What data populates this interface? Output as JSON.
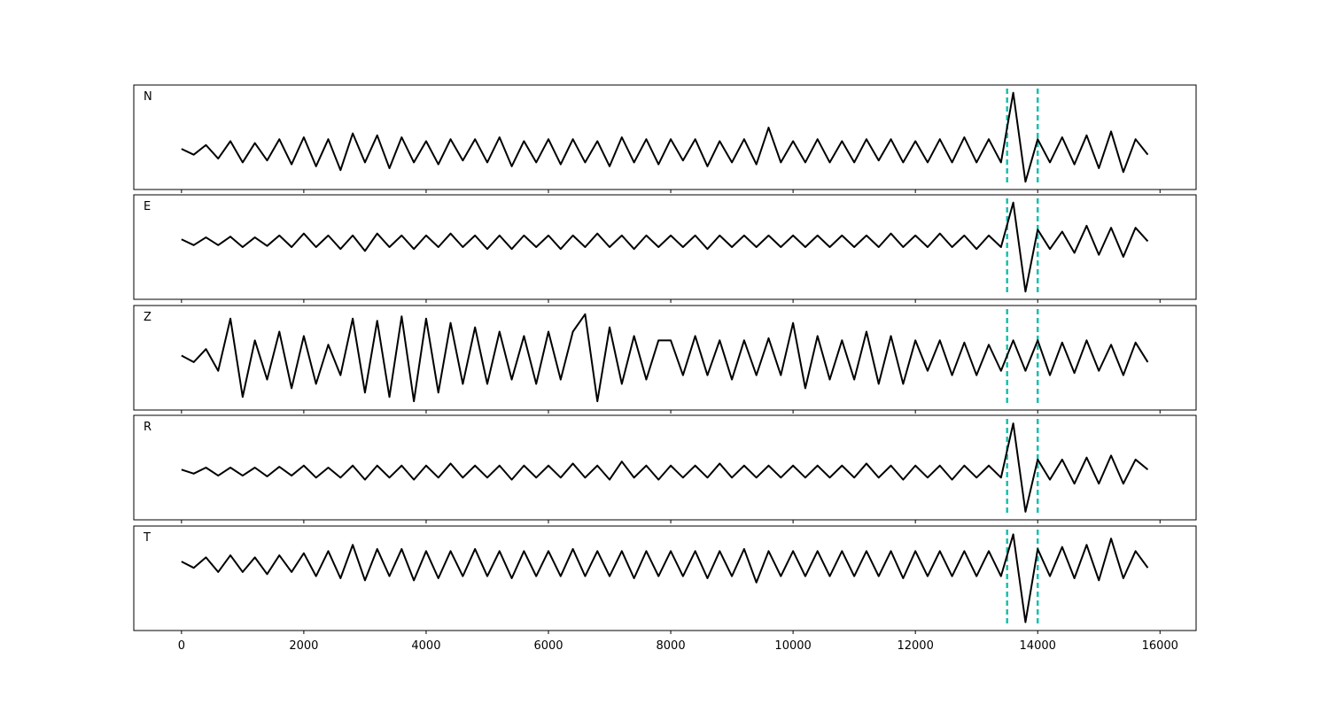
{
  "chart_data": {
    "type": "line",
    "x": [
      0,
      200,
      400,
      600,
      800,
      1000,
      1200,
      1400,
      1600,
      1800,
      2000,
      2200,
      2400,
      2600,
      2800,
      3000,
      3200,
      3400,
      3600,
      3800,
      4000,
      4200,
      4400,
      4600,
      4800,
      5000,
      5200,
      5400,
      5600,
      5800,
      6000,
      6200,
      6400,
      6600,
      6800,
      7000,
      7200,
      7400,
      7600,
      7800,
      8000,
      8200,
      8400,
      8600,
      8800,
      9000,
      9200,
      9400,
      9600,
      9800,
      10000,
      10200,
      10400,
      10600,
      10800,
      11000,
      11200,
      11400,
      11600,
      11800,
      12000,
      12200,
      12400,
      12600,
      12800,
      13000,
      13200,
      13400,
      13600,
      13800,
      14000,
      14200,
      14400,
      14600,
      14800,
      15000,
      15200,
      15400,
      15600,
      15800
    ],
    "xlim": [
      -780,
      16590
    ],
    "xticks": [
      0,
      2000,
      4000,
      6000,
      8000,
      10000,
      12000,
      14000,
      16000
    ],
    "vlines": [
      13500,
      14000
    ],
    "vline_color": "#17c0b0",
    "series": [
      {
        "name": "N",
        "color": "#000000",
        "ylim": [
          -1,
          1.7
        ],
        "values": [
          0.05,
          -0.1,
          0.15,
          -0.2,
          0.25,
          -0.3,
          0.2,
          -0.25,
          0.3,
          -0.35,
          0.35,
          -0.4,
          0.3,
          -0.5,
          0.45,
          -0.3,
          0.4,
          -0.45,
          0.35,
          -0.3,
          0.25,
          -0.35,
          0.3,
          -0.25,
          0.3,
          -0.3,
          0.35,
          -0.4,
          0.25,
          -0.3,
          0.3,
          -0.35,
          0.3,
          -0.3,
          0.25,
          -0.4,
          0.35,
          -0.3,
          0.3,
          -0.35,
          0.3,
          -0.25,
          0.3,
          -0.4,
          0.25,
          -0.3,
          0.3,
          -0.35,
          0.6,
          -0.3,
          0.25,
          -0.3,
          0.3,
          -0.3,
          0.25,
          -0.3,
          0.3,
          -0.25,
          0.3,
          -0.3,
          0.25,
          -0.3,
          0.3,
          -0.3,
          0.35,
          -0.3,
          0.3,
          -0.3,
          1.5,
          -0.8,
          0.3,
          -0.3,
          0.35,
          -0.35,
          0.4,
          -0.45,
          0.5,
          -0.55,
          0.3,
          -0.1
        ]
      },
      {
        "name": "E",
        "color": "#000000",
        "ylim": [
          -1.5,
          1.2
        ],
        "values": [
          0.05,
          -0.1,
          0.1,
          -0.1,
          0.12,
          -0.15,
          0.1,
          -0.12,
          0.15,
          -0.15,
          0.2,
          -0.15,
          0.15,
          -0.2,
          0.15,
          -0.25,
          0.2,
          -0.15,
          0.15,
          -0.2,
          0.15,
          -0.15,
          0.2,
          -0.15,
          0.15,
          -0.2,
          0.15,
          -0.2,
          0.15,
          -0.15,
          0.15,
          -0.2,
          0.15,
          -0.15,
          0.2,
          -0.15,
          0.15,
          -0.2,
          0.15,
          -0.15,
          0.15,
          -0.15,
          0.15,
          -0.2,
          0.15,
          -0.15,
          0.15,
          -0.15,
          0.15,
          -0.15,
          0.15,
          -0.15,
          0.15,
          -0.15,
          0.15,
          -0.15,
          0.15,
          -0.15,
          0.2,
          -0.15,
          0.15,
          -0.15,
          0.2,
          -0.15,
          0.15,
          -0.2,
          0.15,
          -0.15,
          1.0,
          -1.3,
          0.3,
          -0.2,
          0.25,
          -0.3,
          0.4,
          -0.35,
          0.35,
          -0.4,
          0.35,
          0.0
        ]
      },
      {
        "name": "Z",
        "color": "#000000",
        "ylim": [
          -1.2,
          1.2
        ],
        "values": [
          0.05,
          -0.1,
          0.2,
          -0.3,
          0.9,
          -0.9,
          0.4,
          -0.5,
          0.6,
          -0.7,
          0.5,
          -0.6,
          0.3,
          -0.4,
          0.9,
          -0.8,
          0.85,
          -0.9,
          0.95,
          -1.0,
          0.9,
          -0.8,
          0.8,
          -0.6,
          0.7,
          -0.6,
          0.6,
          -0.5,
          0.5,
          -0.6,
          0.6,
          -0.5,
          0.6,
          1.0,
          -1.0,
          0.7,
          -0.6,
          0.5,
          -0.5,
          0.4,
          0.4,
          -0.4,
          0.5,
          -0.4,
          0.4,
          -0.5,
          0.4,
          -0.4,
          0.45,
          -0.4,
          0.8,
          -0.7,
          0.5,
          -0.5,
          0.4,
          -0.5,
          0.6,
          -0.6,
          0.5,
          -0.6,
          0.4,
          -0.3,
          0.4,
          -0.4,
          0.35,
          -0.4,
          0.3,
          -0.3,
          0.4,
          -0.3,
          0.4,
          -0.4,
          0.35,
          -0.35,
          0.4,
          -0.3,
          0.3,
          -0.4,
          0.35,
          -0.1
        ]
      },
      {
        "name": "R",
        "color": "#000000",
        "ylim": [
          -1.2,
          1.4
        ],
        "values": [
          0.05,
          -0.05,
          0.1,
          -0.1,
          0.1,
          -0.1,
          0.1,
          -0.12,
          0.12,
          -0.1,
          0.15,
          -0.15,
          0.1,
          -0.15,
          0.15,
          -0.2,
          0.15,
          -0.15,
          0.15,
          -0.2,
          0.15,
          -0.15,
          0.2,
          -0.15,
          0.15,
          -0.15,
          0.15,
          -0.2,
          0.15,
          -0.15,
          0.15,
          -0.15,
          0.2,
          -0.15,
          0.15,
          -0.2,
          0.25,
          -0.15,
          0.15,
          -0.2,
          0.15,
          -0.15,
          0.15,
          -0.15,
          0.2,
          -0.15,
          0.15,
          -0.15,
          0.15,
          -0.15,
          0.15,
          -0.15,
          0.15,
          -0.15,
          0.15,
          -0.15,
          0.2,
          -0.15,
          0.15,
          -0.2,
          0.15,
          -0.15,
          0.15,
          -0.2,
          0.15,
          -0.15,
          0.15,
          -0.15,
          1.2,
          -1.0,
          0.3,
          -0.2,
          0.3,
          -0.3,
          0.35,
          -0.3,
          0.4,
          -0.3,
          0.3,
          0.05
        ]
      },
      {
        "name": "T",
        "color": "#000000",
        "ylim": [
          -1.6,
          0.9
        ],
        "values": [
          0.05,
          -0.1,
          0.15,
          -0.2,
          0.2,
          -0.2,
          0.15,
          -0.25,
          0.2,
          -0.2,
          0.25,
          -0.3,
          0.3,
          -0.35,
          0.45,
          -0.4,
          0.35,
          -0.3,
          0.35,
          -0.4,
          0.3,
          -0.35,
          0.3,
          -0.3,
          0.35,
          -0.3,
          0.3,
          -0.35,
          0.3,
          -0.3,
          0.3,
          -0.3,
          0.35,
          -0.3,
          0.3,
          -0.3,
          0.3,
          -0.35,
          0.3,
          -0.3,
          0.3,
          -0.3,
          0.3,
          -0.35,
          0.3,
          -0.3,
          0.35,
          -0.45,
          0.3,
          -0.3,
          0.3,
          -0.3,
          0.3,
          -0.3,
          0.3,
          -0.3,
          0.3,
          -0.3,
          0.3,
          -0.35,
          0.3,
          -0.3,
          0.3,
          -0.3,
          0.3,
          -0.3,
          0.3,
          -0.3,
          0.7,
          -1.4,
          0.35,
          -0.3,
          0.4,
          -0.35,
          0.45,
          -0.4,
          0.6,
          -0.35,
          0.3,
          -0.1
        ]
      }
    ]
  }
}
